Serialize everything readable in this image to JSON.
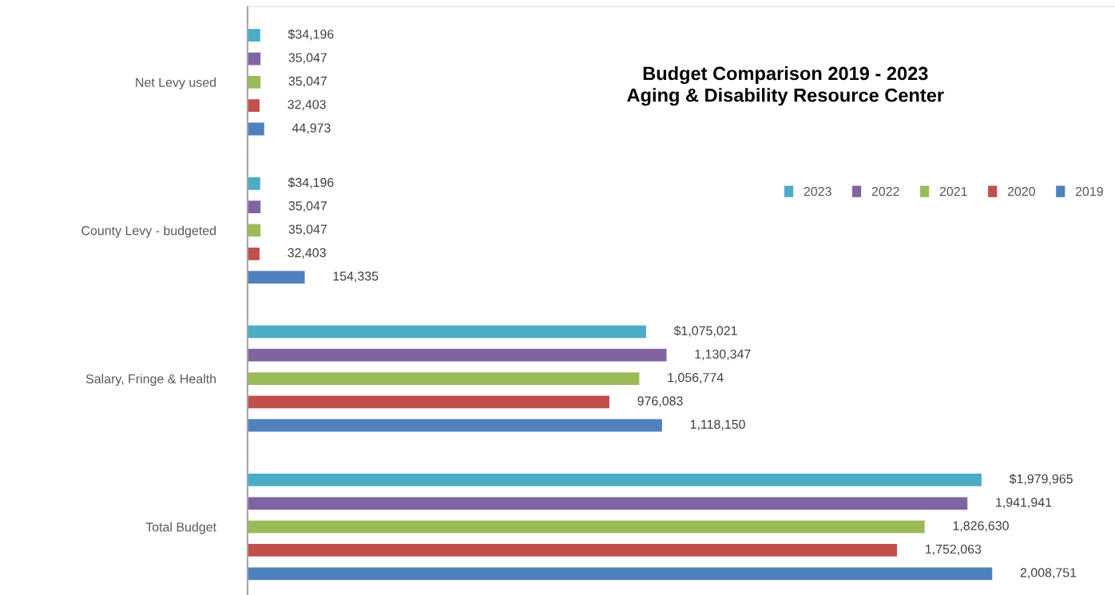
{
  "chart_data": {
    "type": "bar",
    "orientation": "horizontal",
    "title": "Budget Comparison 2019 - 2023\nAging & Disability Resource Center",
    "categories": [
      "Net Levy used",
      "County Levy - budgeted",
      "Salary, Fringe & Health",
      "Total Budget"
    ],
    "series": [
      {
        "name": "2023",
        "color": "#4bacc6",
        "values": [
          34196,
          34196,
          1075021,
          1979965
        ],
        "value_labels": [
          "$34,196",
          "$34,196",
          "$1,075,021",
          "$1,979,965"
        ]
      },
      {
        "name": "2022",
        "color": "#8064a2",
        "values": [
          35047,
          35047,
          1130347,
          1941941
        ],
        "value_labels": [
          "35,047",
          "35,047",
          "1,130,347",
          "1,941,941"
        ]
      },
      {
        "name": "2021",
        "color": "#9bbb59",
        "values": [
          35047,
          35047,
          1056774,
          1826630
        ],
        "value_labels": [
          "35,047",
          "35,047",
          "1,056,774",
          "1,826,630"
        ]
      },
      {
        "name": "2020",
        "color": "#c0504d",
        "values": [
          32403,
          32403,
          976083,
          1752063
        ],
        "value_labels": [
          "32,403",
          "32,403",
          "976,083",
          "1,752,063"
        ]
      },
      {
        "name": "2019",
        "color": "#4f81bd",
        "values": [
          44973,
          154335,
          1118150,
          2008751
        ],
        "value_labels": [
          "44,973",
          "154,335",
          "1,118,150",
          "2,008,751"
        ]
      }
    ],
    "xlim": [
      0,
      2340000
    ],
    "tick_labels": "y",
    "grid": false,
    "legend": "top right"
  }
}
